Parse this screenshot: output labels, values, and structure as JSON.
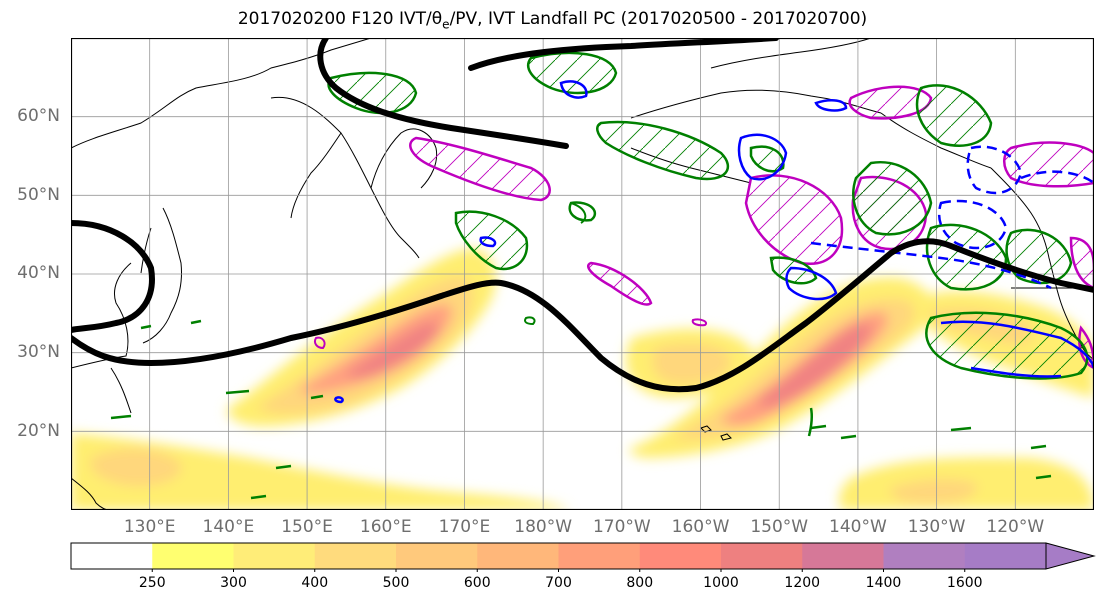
{
  "title": {
    "prefix": "2017020200 F120 IVT/θ",
    "sub": "e",
    "suffix": "/PV, IVT Landfall PC (2017020500 - 2017020700)"
  },
  "map": {
    "projection": "PlateCarree",
    "lon_range": [
      120,
      250
    ],
    "lat_range": [
      10,
      70
    ],
    "lat_ticks": [
      {
        "value": 60,
        "label": "60°N"
      },
      {
        "value": 50,
        "label": "50°N"
      },
      {
        "value": 40,
        "label": "40°N"
      },
      {
        "value": 30,
        "label": "30°N"
      },
      {
        "value": 20,
        "label": "20°N"
      }
    ],
    "lon_ticks": [
      {
        "value": 130,
        "label": "130°E"
      },
      {
        "value": 140,
        "label": "140°E"
      },
      {
        "value": 150,
        "label": "150°E"
      },
      {
        "value": 160,
        "label": "160°E"
      },
      {
        "value": 170,
        "label": "170°E"
      },
      {
        "value": 180,
        "label": "180°W"
      },
      {
        "value": 190,
        "label": "170°W"
      },
      {
        "value": 200,
        "label": "160°W"
      },
      {
        "value": 210,
        "label": "150°W"
      },
      {
        "value": 220,
        "label": "140°W"
      },
      {
        "value": 230,
        "label": "130°W"
      },
      {
        "value": 240,
        "label": "120°W"
      }
    ],
    "grid": true,
    "colors": {
      "jet_contour": "#000000",
      "pv_contour": "#008000",
      "theta_e_contour": "#0000ff",
      "landfall_pc": "#bf00bf",
      "coastline": "#000000"
    }
  },
  "colorbar": {
    "levels": [
      250,
      300,
      400,
      500,
      600,
      700,
      800,
      1000,
      1200,
      1400,
      1600
    ],
    "colors": [
      "#ffffff",
      "#ffff70",
      "#ffed78",
      "#ffdb7d",
      "#ffc97c",
      "#ffb77a",
      "#ff9f7a",
      "#ff8a7a",
      "#ee8080",
      "#d67898",
      "#b07fc0",
      "#a67cc6"
    ],
    "extend": "max"
  }
}
